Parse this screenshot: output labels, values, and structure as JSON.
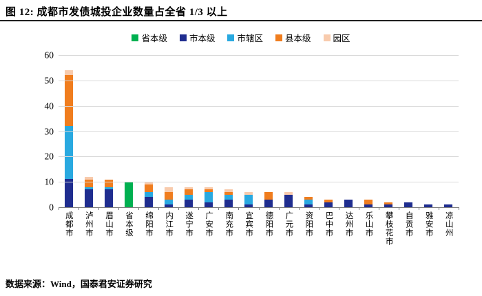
{
  "header": {
    "title": "图 12: 成都市发债城投企业数量占全省 1/3 以上"
  },
  "footer": {
    "source": "数据来源：Wind，国泰君安证券研究"
  },
  "colors": {
    "provincial_green": "#00B050",
    "city_navy": "#1F2D8F",
    "district_lightblue": "#29A9E0",
    "county_orange": "#F07D1E",
    "park_tan": "#F8CBAD",
    "gridline": "#d9d9d9",
    "axis": "#808080",
    "title_rule": "#1f1f1f"
  },
  "chart_data": {
    "type": "bar",
    "stacked": true,
    "title": "图 12: 成都市发债城投企业数量占全省 1/3 以上",
    "xlabel": "",
    "ylabel": "",
    "ylim": [
      0,
      60
    ],
    "ytick_step": 10,
    "yticks": [
      0,
      10,
      20,
      30,
      40,
      50,
      60
    ],
    "grid": "horizontal",
    "legend_position": "top-center",
    "categories": [
      "成都市",
      "泸州市",
      "眉山市",
      "省本级",
      "绵阳市",
      "内江市",
      "遂宁市",
      "广安市",
      "南充市",
      "宜宾市",
      "德阳市",
      "广元市",
      "资阳市",
      "巴中市",
      "达州市",
      "乐山市",
      "攀枝花市",
      "自贡市",
      "雅安市",
      "凉山州"
    ],
    "series": [
      {
        "name": "省本级",
        "color": "#00B050",
        "values": [
          0,
          0,
          0,
          10,
          0,
          0,
          0,
          0,
          0,
          0,
          0,
          0,
          0,
          0,
          0,
          0,
          0,
          0,
          0,
          0
        ]
      },
      {
        "name": "市本级",
        "color": "#1F2D8F",
        "values": [
          11,
          7,
          7,
          0,
          4,
          1,
          3,
          2,
          3,
          1,
          3,
          5,
          1,
          2,
          3,
          1,
          1,
          2,
          1,
          1
        ]
      },
      {
        "name": "市辖区",
        "color": "#29A9E0",
        "values": [
          21,
          1,
          1,
          0,
          2,
          2,
          2,
          4,
          2,
          4,
          0,
          0,
          2,
          0,
          0,
          0,
          0,
          0,
          0,
          0
        ]
      },
      {
        "name": "县本级",
        "color": "#F07D1E",
        "values": [
          20,
          3,
          3,
          0,
          3,
          3,
          2,
          1,
          1,
          0,
          3,
          0,
          1,
          1,
          0,
          2,
          1,
          0,
          0,
          0
        ]
      },
      {
        "name": "园区",
        "color": "#F8CBAD",
        "values": [
          2,
          1,
          0,
          0,
          1,
          2,
          1,
          1,
          1,
          1,
          0,
          1,
          0,
          0,
          0,
          0,
          0,
          0,
          0,
          0
        ]
      }
    ],
    "totals": [
      54,
      12,
      11,
      10,
      10,
      8,
      8,
      8,
      7,
      6,
      6,
      6,
      4,
      3,
      3,
      3,
      2,
      2,
      1,
      1
    ]
  }
}
